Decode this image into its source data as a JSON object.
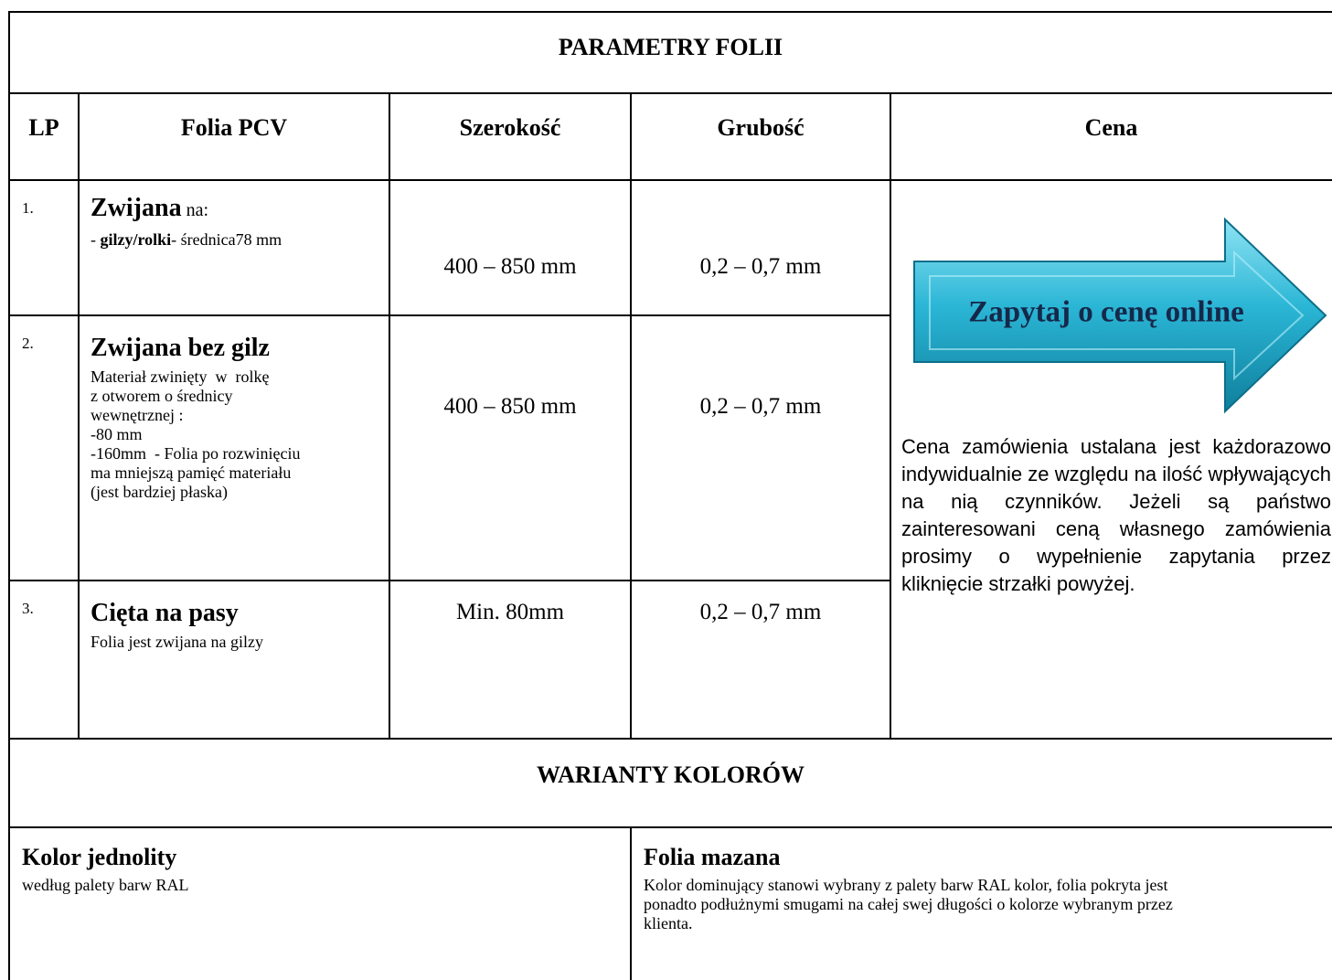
{
  "table": {
    "title": "PARAMETRY FOLII",
    "headers": [
      "LP",
      "Folia PCV",
      "Szerokość",
      "Grubość",
      "Cena"
    ],
    "rows": [
      {
        "lp": "1.",
        "name": "Zwijana",
        "name_suffix": " na:",
        "detail_parts": [
          "- ",
          "gilzy/rolki",
          "- średnica78 mm"
        ],
        "width": "400 – 850 mm",
        "thickness": "0,2 – 0,7 mm"
      },
      {
        "lp": "2.",
        "name": "Zwijana bez gilz",
        "details": [
          "Materiał zwinięty  w  rolkę",
          "z otworem o średnicy",
          "wewnętrznej :",
          "-80 mm",
          "-160mm  - Folia po rozwinięciu",
          "ma mniejszą pamięć materiału",
          "(jest bardziej płaska)"
        ],
        "width": "400 – 850 mm",
        "thickness": "0,2 – 0,7 mm"
      },
      {
        "lp": "3.",
        "name": "Cięta na pasy",
        "details": [
          "Folia jest zwijana na gilzy"
        ],
        "width": "Min. 80mm",
        "thickness": "0,2 – 0,7 mm"
      }
    ],
    "price": {
      "button": "Zapytaj o cenę online",
      "note": "Cena zamówienia ustalana jest każdorazowo indywidualnie ze względu na ilość wpływających na nią czynników. Jeżeli są państwo zainteresowani ceną własnego zamówienia prosimy o wypełnienie zapytania przez kliknięcie strzałki powyżej."
    }
  },
  "colors": {
    "title": "WARIANTY KOLORÓW",
    "variants": [
      {
        "name": "Kolor jednolity",
        "description": "według palety barw RAL"
      },
      {
        "name": "Folia mazana",
        "description": "Kolor dominujący stanowi wybrany z palety barw RAL kolor, folia pokryta jest ponadto podłużnymi smugami na całej swej długości o kolorze wybranym przez klienta."
      }
    ]
  }
}
